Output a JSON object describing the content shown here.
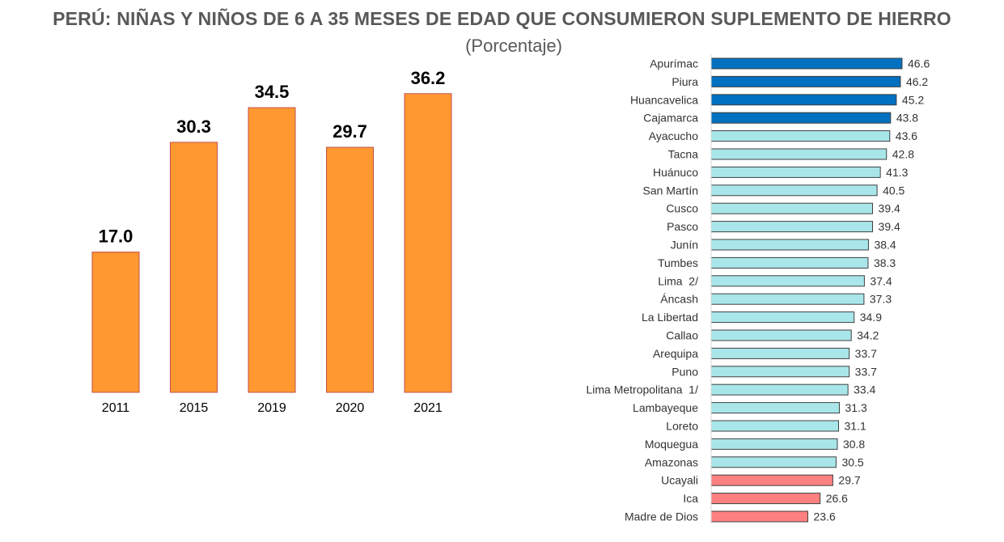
{
  "title": "PERÚ: NIÑAS Y NIÑOS DE 6 A 35 MESES DE EDAD QUE CONSUMIERON SUPLEMENTO DE HIERRO",
  "subtitle": "(Porcentaje)",
  "colors": {
    "orange_fill": "#FF9830",
    "orange_stroke": "#C0504D",
    "blue_fill": "#0070C0",
    "teal_fill": "#A8E6EA",
    "red_fill": "#FF8080",
    "hbar_stroke": "#404040"
  },
  "chart_data": [
    {
      "type": "bar",
      "categories": [
        "2011",
        "2015",
        "2019",
        "2020",
        "2021"
      ],
      "values": [
        17.0,
        30.3,
        34.5,
        29.7,
        36.2
      ],
      "value_labels": [
        "17.0",
        "30.3",
        "34.5",
        "29.7",
        "36.2"
      ],
      "ylim": [
        0,
        50
      ],
      "grid": false
    },
    {
      "type": "bar",
      "orientation": "horizontal",
      "categories": [
        "Apurímac",
        "Piura",
        "Huancavelica",
        "Cajamarca",
        "Ayacucho",
        "Tacna",
        "Huánuco",
        "San Martín",
        "Cusco",
        "Pasco",
        "Junín",
        "Tumbes",
        "Lima  2/",
        "Áncash",
        "La Libertad",
        "Callao",
        "Arequipa",
        "Puno",
        "Lima Metropolitana  1/",
        "Lambayeque",
        "Loreto",
        "Moquegua",
        "Amazonas",
        "Ucayali",
        "Ica",
        "Madre de Dios"
      ],
      "values": [
        46.6,
        46.2,
        45.2,
        43.8,
        43.6,
        42.8,
        41.3,
        40.5,
        39.4,
        39.4,
        38.4,
        38.3,
        37.4,
        37.3,
        34.9,
        34.2,
        33.7,
        33.7,
        33.4,
        31.3,
        31.1,
        30.8,
        30.5,
        29.7,
        26.6,
        23.6
      ],
      "value_labels": [
        "46.6",
        "46.2",
        "45.2",
        "43.8",
        "43.6",
        "42.8",
        "41.3",
        "40.5",
        "39.4",
        "39.4",
        "38.4",
        "38.3",
        "37.4",
        "37.3",
        "34.9",
        "34.2",
        "33.7",
        "33.7",
        "33.4",
        "31.3",
        "31.1",
        "30.8",
        "30.5",
        "29.7",
        "26.6",
        "23.6"
      ],
      "groups": [
        "top",
        "top",
        "top",
        "top",
        "mid",
        "mid",
        "mid",
        "mid",
        "mid",
        "mid",
        "mid",
        "mid",
        "mid",
        "mid",
        "mid",
        "mid",
        "mid",
        "mid",
        "mid",
        "mid",
        "mid",
        "mid",
        "mid",
        "low",
        "low",
        "low"
      ],
      "xlim": [
        0,
        46.6
      ],
      "grid": false
    }
  ]
}
